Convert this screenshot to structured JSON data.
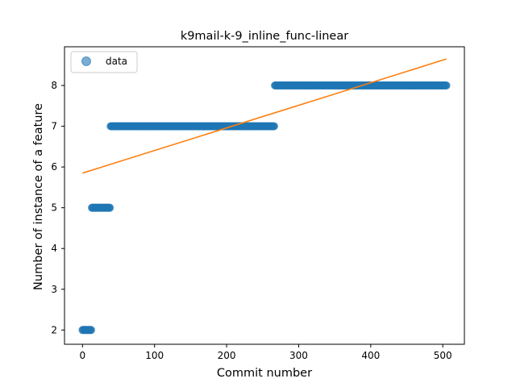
{
  "chart_data": {
    "type": "scatter",
    "title": "k9mail-k-9_inline_func-linear",
    "xlabel": "Commit number",
    "ylabel": "Number of instance of a feature",
    "xlim": [
      -25,
      530
    ],
    "ylim": [
      1.65,
      8.95
    ],
    "xticks": [
      0,
      100,
      200,
      300,
      400,
      500
    ],
    "yticks": [
      2,
      3,
      4,
      5,
      6,
      7,
      8
    ],
    "grid": false,
    "legend_position": "upper-left",
    "series": [
      {
        "name": "data",
        "kind": "scatter",
        "color": "#1f77b4",
        "segments": [
          {
            "x_start": 0,
            "x_end": 12,
            "y": 2
          },
          {
            "x_start": 13,
            "x_end": 38,
            "y": 5
          },
          {
            "x_start": 39,
            "x_end": 266,
            "y": 7
          },
          {
            "x_start": 267,
            "x_end": 505,
            "y": 8
          }
        ]
      },
      {
        "kind": "line",
        "color": "#ff7f0e",
        "x": [
          0,
          505
        ],
        "y": [
          5.85,
          8.65
        ]
      }
    ]
  }
}
